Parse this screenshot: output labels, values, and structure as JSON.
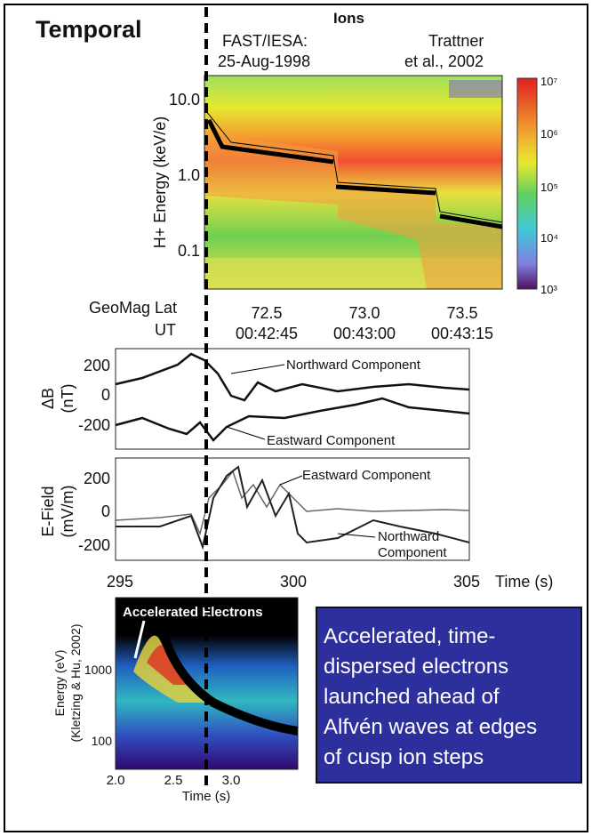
{
  "title": "Temporal",
  "ions": {
    "title": "Ions",
    "source": [
      "FAST/IESA:",
      "25-Aug-1998"
    ],
    "reference": [
      "Trattner",
      "et al., 2002"
    ],
    "y_label": "H+ Energy (keV/e)",
    "y_ticks": [
      "10.0",
      "1.0",
      "0.1"
    ],
    "colorbar_ticks": [
      "10⁷",
      "10⁶",
      "10⁵",
      "10⁴",
      "10³"
    ],
    "geomag_label": "GeoMag Lat",
    "ut_label": "UT",
    "lat_ticks": [
      "72.5",
      "73.0",
      "73.5"
    ],
    "ut_ticks": [
      "00:42:45",
      "00:43:00",
      "00:43:15"
    ]
  },
  "delta_b": {
    "y_label": [
      "ΔB",
      "(nT)"
    ],
    "y_ticks": [
      "200",
      "0",
      "-200"
    ],
    "annotations": [
      "Northward Component",
      "Eastward Component"
    ]
  },
  "e_field": {
    "y_label": [
      "E-Field",
      "(mV/m)"
    ],
    "y_ticks": [
      "200",
      "0",
      "-200"
    ],
    "annotations": [
      "Eastward Component",
      "Northward",
      "Component"
    ]
  },
  "time_axis": {
    "ticks": [
      "295",
      "300",
      "305"
    ],
    "label": "Time (s)"
  },
  "electrons": {
    "title": "Accelerated Electrons",
    "y_label": [
      "Energy (eV)",
      "(Kletzing & Hu, 2002)"
    ],
    "y_ticks": [
      "1000",
      "100"
    ],
    "x_ticks": [
      "2.0",
      "2.5",
      "3.0"
    ],
    "x_label": "Time (s)"
  },
  "caption": [
    "Accelerated, time-",
    "dispersed electrons",
    "launched ahead of",
    "Alfvén waves at edges",
    "of cusp ion steps"
  ]
}
